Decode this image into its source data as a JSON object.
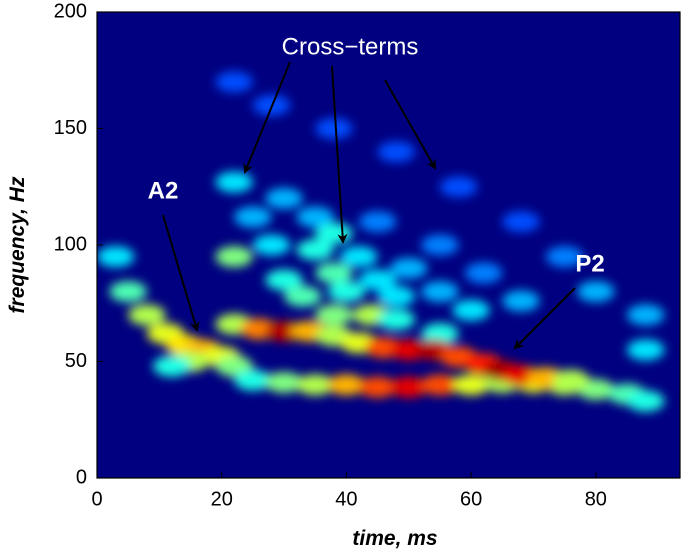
{
  "chart_data": {
    "type": "heatmap",
    "colormap": "jet",
    "xlabel": "time, ms",
    "ylabel": "frequency, Hz",
    "xlim": [
      0,
      93.5
    ],
    "ylim": [
      0,
      200
    ],
    "xticks": [
      0,
      20,
      40,
      60,
      80
    ],
    "yticks": [
      0,
      50,
      100,
      150,
      200
    ],
    "annotations": [
      "Cross−terms",
      "A2",
      "P2"
    ],
    "points": [
      {
        "x": 22,
        "y": 170,
        "value": 0.2
      },
      {
        "x": 28,
        "y": 160,
        "value": 0.2
      },
      {
        "x": 38,
        "y": 150,
        "value": 0.2
      },
      {
        "x": 48,
        "y": 140,
        "value": 0.2
      },
      {
        "x": 58,
        "y": 125,
        "value": 0.2
      },
      {
        "x": 68,
        "y": 110,
        "value": 0.2
      },
      {
        "x": 75,
        "y": 95,
        "value": 0.25
      },
      {
        "x": 80,
        "y": 80,
        "value": 0.3
      },
      {
        "x": 88,
        "y": 70,
        "value": 0.3
      },
      {
        "x": 45,
        "y": 110,
        "value": 0.25
      },
      {
        "x": 55,
        "y": 100,
        "value": 0.25
      },
      {
        "x": 62,
        "y": 88,
        "value": 0.25
      },
      {
        "x": 30,
        "y": 120,
        "value": 0.3
      },
      {
        "x": 35,
        "y": 112,
        "value": 0.3
      },
      {
        "x": 25,
        "y": 112,
        "value": 0.3
      },
      {
        "x": 50,
        "y": 90,
        "value": 0.3
      },
      {
        "x": 55,
        "y": 80,
        "value": 0.3
      },
      {
        "x": 68,
        "y": 76,
        "value": 0.3
      },
      {
        "x": 22,
        "y": 127,
        "value": 0.35
      },
      {
        "x": 28,
        "y": 100,
        "value": 0.35
      },
      {
        "x": 42,
        "y": 95,
        "value": 0.35
      },
      {
        "x": 45,
        "y": 85,
        "value": 0.35
      },
      {
        "x": 48,
        "y": 78,
        "value": 0.35
      },
      {
        "x": 60,
        "y": 72,
        "value": 0.35
      },
      {
        "x": 88,
        "y": 55,
        "value": 0.35
      },
      {
        "x": 3,
        "y": 95,
        "value": 0.35
      },
      {
        "x": 22,
        "y": 95,
        "value": 0.5
      },
      {
        "x": 30,
        "y": 85,
        "value": 0.4
      },
      {
        "x": 33,
        "y": 78,
        "value": 0.45
      },
      {
        "x": 35,
        "y": 98,
        "value": 0.4
      },
      {
        "x": 38,
        "y": 88,
        "value": 0.45
      },
      {
        "x": 38,
        "y": 105,
        "value": 0.4
      },
      {
        "x": 40,
        "y": 80,
        "value": 0.4
      },
      {
        "x": 38,
        "y": 70,
        "value": 0.5
      },
      {
        "x": 44,
        "y": 70,
        "value": 0.55
      },
      {
        "x": 48,
        "y": 68,
        "value": 0.4
      },
      {
        "x": 55,
        "y": 62,
        "value": 0.4
      },
      {
        "x": 5,
        "y": 80,
        "value": 0.45
      },
      {
        "x": 8,
        "y": 70,
        "value": 0.55
      },
      {
        "x": 11,
        "y": 62,
        "value": 0.6
      },
      {
        "x": 14,
        "y": 57,
        "value": 0.65
      },
      {
        "x": 17,
        "y": 55,
        "value": 0.7
      },
      {
        "x": 20,
        "y": 52,
        "value": 0.6
      },
      {
        "x": 15,
        "y": 50,
        "value": 0.55
      },
      {
        "x": 22,
        "y": 48,
        "value": 0.5
      },
      {
        "x": 12,
        "y": 48,
        "value": 0.4
      },
      {
        "x": 25,
        "y": 42,
        "value": 0.4
      },
      {
        "x": 30,
        "y": 41,
        "value": 0.5
      },
      {
        "x": 35,
        "y": 40,
        "value": 0.55
      },
      {
        "x": 40,
        "y": 40,
        "value": 0.7
      },
      {
        "x": 45,
        "y": 39,
        "value": 0.8
      },
      {
        "x": 50,
        "y": 39,
        "value": 0.9
      },
      {
        "x": 55,
        "y": 40,
        "value": 0.8
      },
      {
        "x": 60,
        "y": 40,
        "value": 0.6
      },
      {
        "x": 65,
        "y": 41,
        "value": 0.55
      },
      {
        "x": 70,
        "y": 41,
        "value": 0.6
      },
      {
        "x": 75,
        "y": 40,
        "value": 0.55
      },
      {
        "x": 80,
        "y": 38,
        "value": 0.5
      },
      {
        "x": 85,
        "y": 36,
        "value": 0.45
      },
      {
        "x": 88,
        "y": 33,
        "value": 0.4
      },
      {
        "x": 22,
        "y": 66,
        "value": 0.55
      },
      {
        "x": 26,
        "y": 64,
        "value": 0.75
      },
      {
        "x": 30,
        "y": 63,
        "value": 0.95
      },
      {
        "x": 34,
        "y": 63,
        "value": 0.7
      },
      {
        "x": 38,
        "y": 61,
        "value": 0.55
      },
      {
        "x": 42,
        "y": 58,
        "value": 0.6
      },
      {
        "x": 46,
        "y": 56,
        "value": 0.8
      },
      {
        "x": 50,
        "y": 55,
        "value": 0.9
      },
      {
        "x": 54,
        "y": 55,
        "value": 0.95
      },
      {
        "x": 58,
        "y": 52,
        "value": 0.8
      },
      {
        "x": 62,
        "y": 49,
        "value": 0.85
      },
      {
        "x": 65,
        "y": 46,
        "value": 0.97
      },
      {
        "x": 68,
        "y": 44,
        "value": 0.9
      },
      {
        "x": 72,
        "y": 43,
        "value": 0.7
      },
      {
        "x": 76,
        "y": 42,
        "value": 0.55
      }
    ]
  }
}
